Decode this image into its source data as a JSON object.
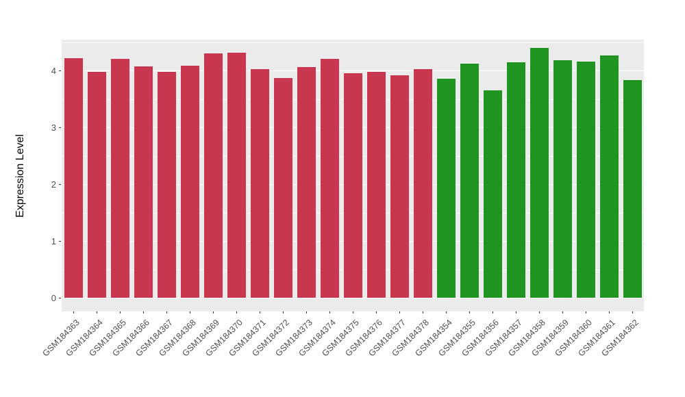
{
  "chart_data": {
    "type": "bar",
    "title": "",
    "xlabel": "",
    "ylabel": "Expression Level",
    "ylim": [
      -0.24,
      4.54
    ],
    "yticks": [
      0,
      1,
      2,
      3,
      4
    ],
    "yticks_minor": [
      0.5,
      1.5,
      2.5,
      3.5,
      4.5
    ],
    "grid": true,
    "legend_position": "none",
    "panel_background": "#EBEBEB",
    "grid_color": "#FFFFFF",
    "categories": [
      "GSM184363",
      "GSM184364",
      "GSM184365",
      "GSM184366",
      "GSM184367",
      "GSM184368",
      "GSM184369",
      "GSM184370",
      "GSM184371",
      "GSM184372",
      "GSM184373",
      "GSM184374",
      "GSM184375",
      "GSM184376",
      "GSM184377",
      "GSM184378",
      "GSM184354",
      "GSM184355",
      "GSM184356",
      "GSM184357",
      "GSM184358",
      "GSM184359",
      "GSM184360",
      "GSM184361",
      "GSM184362"
    ],
    "values": [
      4.22,
      3.97,
      4.2,
      4.07,
      3.97,
      4.08,
      4.3,
      4.31,
      4.02,
      3.87,
      4.06,
      4.21,
      3.95,
      3.98,
      3.91,
      4.02,
      3.86,
      4.12,
      3.65,
      4.15,
      4.4,
      4.18,
      4.16,
      4.26,
      3.83
    ],
    "groups": [
      "red",
      "red",
      "red",
      "red",
      "red",
      "red",
      "red",
      "red",
      "red",
      "red",
      "red",
      "red",
      "red",
      "red",
      "red",
      "red",
      "green",
      "green",
      "green",
      "green",
      "green",
      "green",
      "green",
      "green",
      "green"
    ],
    "group_colors": {
      "red": "#C8374F",
      "green": "#1F9420"
    }
  }
}
